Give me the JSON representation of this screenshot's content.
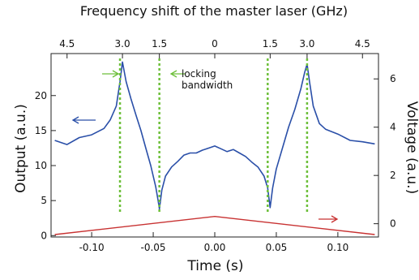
{
  "chart_data": {
    "type": "line",
    "title": "Frequency shift of the master laser (GHz)",
    "xlabel": "Time (s)",
    "ylabel": "Output (a.u.)",
    "y2label": "Voltage (a.u.)",
    "xlim": [
      -0.133,
      0.133
    ],
    "ylim": [
      -0.2,
      26
    ],
    "y2lim": [
      -0.55,
      7.05
    ],
    "x_ticks": [
      -0.1,
      -0.05,
      0.0,
      0.05,
      0.1
    ],
    "x_tick_labels": [
      "-0.10",
      "-0.05",
      "0.00",
      "0.05",
      "0.10"
    ],
    "y_ticks": [
      0,
      5,
      10,
      15,
      20
    ],
    "y_tick_labels": [
      "0",
      "5",
      "10",
      "15",
      "20"
    ],
    "y2_ticks": [
      0,
      2,
      4,
      6
    ],
    "y2_tick_labels": [
      "0",
      "2",
      "4",
      "6"
    ],
    "top_ticks_x": [
      -0.12,
      -0.075,
      -0.045,
      0.0,
      0.045,
      0.075,
      0.12
    ],
    "top_tick_labels": [
      "4.5",
      "3.0",
      "1.5",
      "0",
      "1.5",
      "3.0",
      "4.5"
    ],
    "grid": false,
    "series": [
      {
        "role": "output",
        "axis": "left",
        "color": "#2a4fa8",
        "x": [
          -0.13,
          -0.12,
          -0.11,
          -0.1,
          -0.09,
          -0.085,
          -0.08,
          -0.077,
          -0.075,
          -0.072,
          -0.068,
          -0.064,
          -0.06,
          -0.056,
          -0.052,
          -0.048,
          -0.046,
          -0.045,
          -0.043,
          -0.04,
          -0.035,
          -0.03,
          -0.025,
          -0.02,
          -0.015,
          -0.01,
          -0.005,
          0.0,
          0.005,
          0.01,
          0.015,
          0.02,
          0.025,
          0.03,
          0.035,
          0.04,
          0.043,
          0.045,
          0.047,
          0.05,
          0.055,
          0.06,
          0.065,
          0.07,
          0.073,
          0.075,
          0.077,
          0.08,
          0.085,
          0.09,
          0.1,
          0.11,
          0.12,
          0.13
        ],
        "y": [
          13.6,
          13.0,
          14.0,
          14.4,
          15.3,
          16.5,
          18.5,
          22.0,
          24.8,
          22.0,
          19.5,
          17.2,
          15.0,
          12.5,
          10.0,
          7.0,
          5.0,
          3.8,
          6.5,
          8.5,
          9.8,
          10.6,
          11.5,
          11.8,
          11.8,
          12.2,
          12.5,
          12.8,
          12.4,
          12.0,
          12.3,
          11.8,
          11.3,
          10.5,
          9.8,
          8.5,
          6.8,
          4.0,
          6.8,
          9.5,
          12.5,
          15.5,
          18.0,
          21.0,
          23.3,
          24.5,
          22.0,
          18.5,
          16.0,
          15.2,
          14.5,
          13.6,
          13.4,
          13.1
        ]
      },
      {
        "role": "voltage",
        "axis": "right",
        "color": "#c83232",
        "x": [
          -0.13,
          0.0,
          0.13
        ],
        "y": [
          -0.45,
          0.3,
          -0.45
        ]
      }
    ],
    "locking_lines_x": [
      -0.077,
      -0.045,
      0.043,
      0.075
    ],
    "locking_color": "#6dbf3a",
    "annotations": {
      "locking": "locking\nbandwidth"
    }
  }
}
